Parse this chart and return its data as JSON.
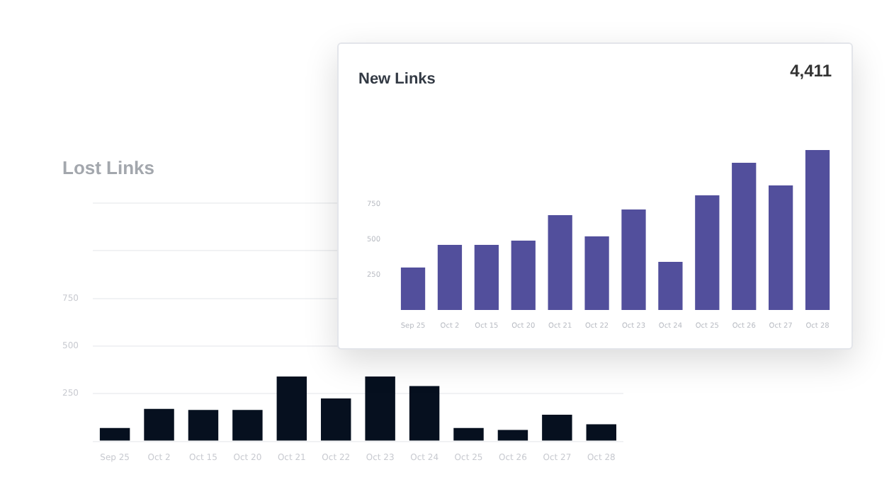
{
  "chart_data": [
    {
      "type": "bar",
      "title": "Lost Links",
      "categories": [
        "Sep 25",
        "Oct 2",
        "Oct 15",
        "Oct 20",
        "Oct 21",
        "Oct 22",
        "Oct 23",
        "Oct 24",
        "Oct 25",
        "Oct 26",
        "Oct 27",
        "Oct 28"
      ],
      "values": [
        70,
        170,
        165,
        165,
        340,
        225,
        340,
        290,
        70,
        60,
        140,
        90
      ],
      "color": "#06101f",
      "ylim": [
        0,
        1250
      ],
      "yticks": [
        {
          "value": 0,
          "label": null
        },
        250,
        500,
        750,
        {
          "value": 1000,
          "label": null
        },
        {
          "value": 1250,
          "label": null
        }
      ],
      "grid": "y"
    },
    {
      "type": "bar",
      "title": "New Links",
      "annotations": [
        "4,411"
      ],
      "categories": [
        "Sep 25",
        "Oct 2",
        "Oct 15",
        "Oct 20",
        "Oct 21",
        "Oct 22",
        "Oct 23",
        "Oct 24",
        "Oct 25",
        "Oct 26",
        "Oct 27",
        "Oct 28"
      ],
      "values": [
        300,
        460,
        460,
        490,
        670,
        520,
        710,
        340,
        810,
        1040,
        880,
        1130
      ],
      "color": "#524f9c",
      "ylim": [
        0,
        1150
      ],
      "yticks": [
        250,
        500,
        750
      ],
      "grid": false
    }
  ]
}
